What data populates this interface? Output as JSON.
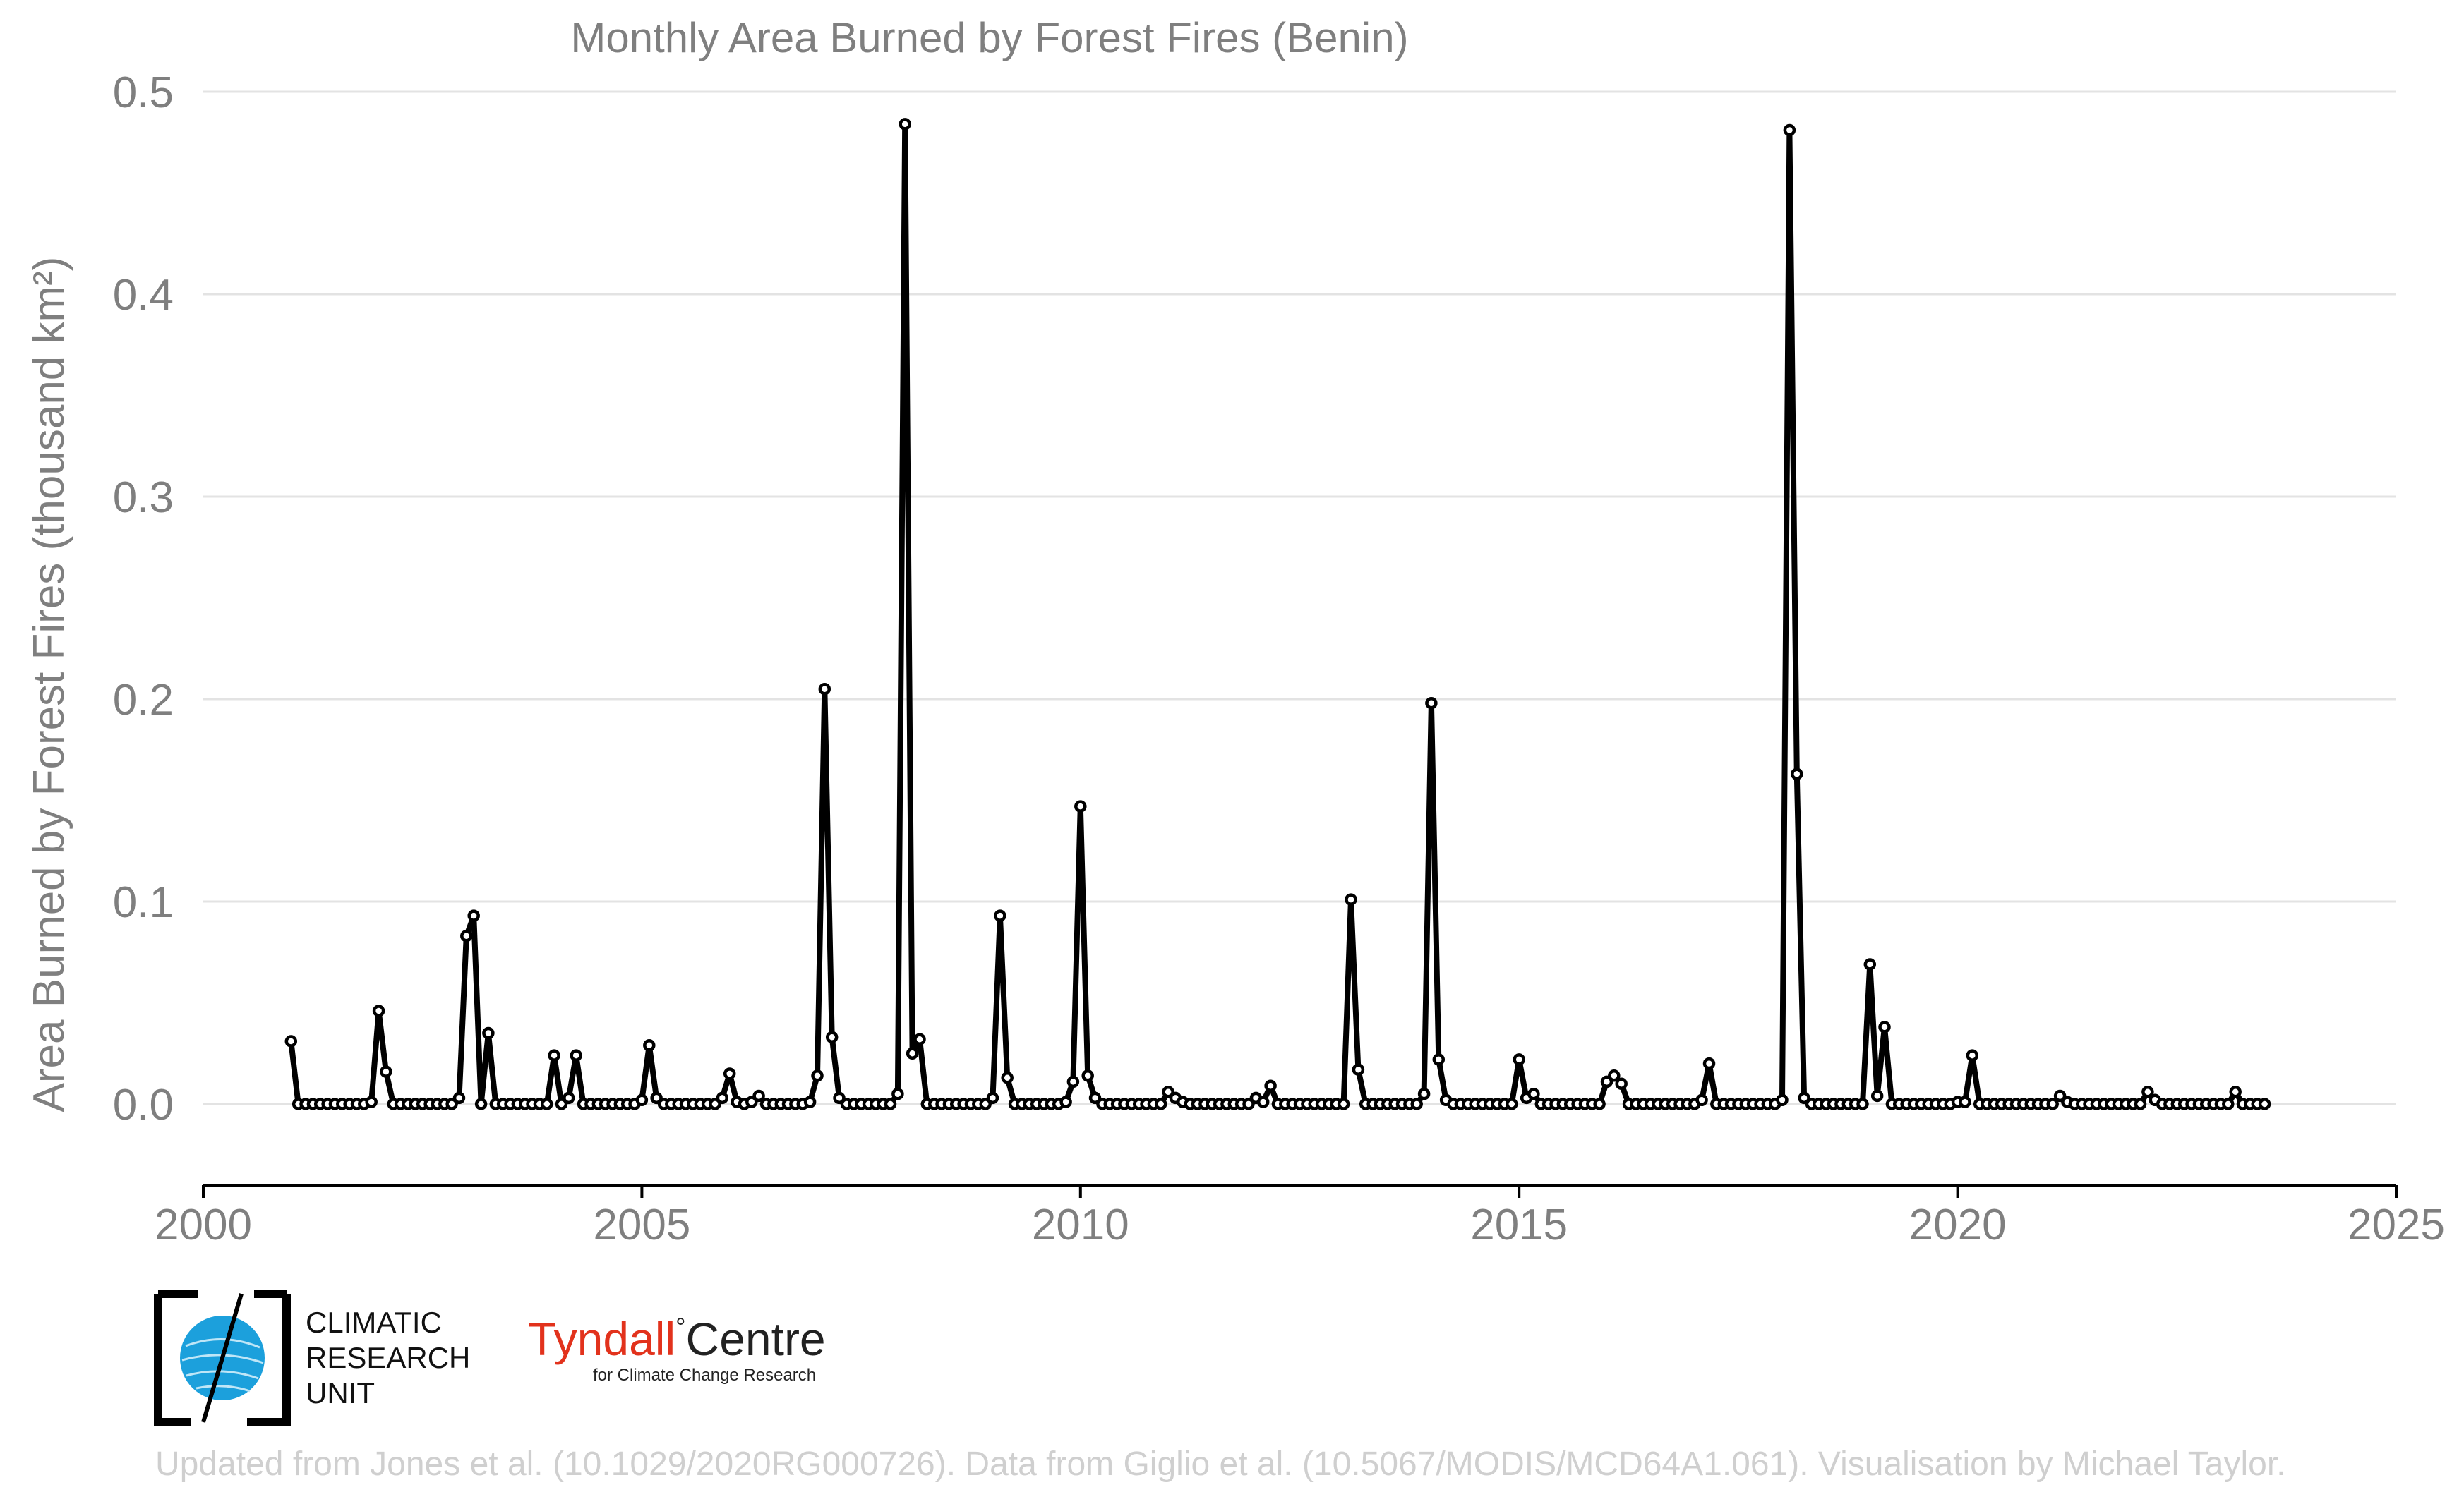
{
  "chart_data": {
    "type": "line",
    "title": "Monthly Area Burned by Forest Fires (Benin)",
    "ylabel": "Area Burned by Forest Fires (thousand km²)",
    "xlabel": "",
    "xlim": [
      2000,
      2025
    ],
    "ylim": [
      -0.04,
      0.5
    ],
    "xticks": [
      "2000",
      "2005",
      "2010",
      "2015",
      "2020",
      "2025"
    ],
    "yticks": [
      "0.0",
      "0.1",
      "0.2",
      "0.3",
      "0.4",
      "0.5"
    ],
    "grid": "horizontal",
    "series_color": "#000000",
    "x_start": "2001-01",
    "x_step": "monthly",
    "values": [
      0.031,
      0.0,
      0.0,
      0.0,
      0.0,
      0.0,
      0.0,
      0.0,
      0.0,
      0.0,
      0.0,
      0.001,
      0.046,
      0.016,
      0.0,
      0.0,
      0.0,
      0.0,
      0.0,
      0.0,
      0.0,
      0.0,
      0.0,
      0.003,
      0.083,
      0.093,
      0.0,
      0.035,
      0.0,
      0.0,
      0.0,
      0.0,
      0.0,
      0.0,
      0.0,
      0.0,
      0.024,
      0.0,
      0.003,
      0.024,
      0.0,
      0.0,
      0.0,
      0.0,
      0.0,
      0.0,
      0.0,
      0.0,
      0.002,
      0.029,
      0.003,
      0.0,
      0.0,
      0.0,
      0.0,
      0.0,
      0.0,
      0.0,
      0.0,
      0.003,
      0.015,
      0.001,
      0.0,
      0.001,
      0.004,
      0.0,
      0.0,
      0.0,
      0.0,
      0.0,
      0.0,
      0.001,
      0.014,
      0.205,
      0.033,
      0.003,
      0.0,
      0.0,
      0.0,
      0.0,
      0.0,
      0.0,
      0.0,
      0.005,
      0.484,
      0.025,
      0.032,
      0.0,
      0.0,
      0.0,
      0.0,
      0.0,
      0.0,
      0.0,
      0.0,
      0.0,
      0.003,
      0.093,
      0.013,
      0.0,
      0.0,
      0.0,
      0.0,
      0.0,
      0.0,
      0.0,
      0.001,
      0.011,
      0.147,
      0.014,
      0.003,
      0.0,
      0.0,
      0.0,
      0.0,
      0.0,
      0.0,
      0.0,
      0.0,
      0.0,
      0.006,
      0.003,
      0.001,
      0.0,
      0.0,
      0.0,
      0.0,
      0.0,
      0.0,
      0.0,
      0.0,
      0.0,
      0.003,
      0.001,
      0.009,
      0.0,
      0.0,
      0.0,
      0.0,
      0.0,
      0.0,
      0.0,
      0.0,
      0.0,
      0.0,
      0.101,
      0.017,
      0.0,
      0.0,
      0.0,
      0.0,
      0.0,
      0.0,
      0.0,
      0.0,
      0.005,
      0.198,
      0.022,
      0.002,
      0.0,
      0.0,
      0.0,
      0.0,
      0.0,
      0.0,
      0.0,
      0.0,
      0.0,
      0.022,
      0.003,
      0.005,
      0.0,
      0.0,
      0.0,
      0.0,
      0.0,
      0.0,
      0.0,
      0.0,
      0.0,
      0.011,
      0.014,
      0.01,
      0.0,
      0.0,
      0.0,
      0.0,
      0.0,
      0.0,
      0.0,
      0.0,
      0.0,
      0.0,
      0.002,
      0.02,
      0.0,
      0.0,
      0.0,
      0.0,
      0.0,
      0.0,
      0.0,
      0.0,
      0.0,
      0.002,
      0.481,
      0.163,
      0.003,
      0.0,
      0.0,
      0.0,
      0.0,
      0.0,
      0.0,
      0.0,
      0.0,
      0.069,
      0.004,
      0.038,
      0.0,
      0.0,
      0.0,
      0.0,
      0.0,
      0.0,
      0.0,
      0.0,
      0.0,
      0.001,
      0.001,
      0.024,
      0.0,
      0.0,
      0.0,
      0.0,
      0.0,
      0.0,
      0.0,
      0.0,
      0.0,
      0.0,
      0.0,
      0.004,
      0.001,
      0.0,
      0.0,
      0.0,
      0.0,
      0.0,
      0.0,
      0.0,
      0.0,
      0.0,
      0.0,
      0.006,
      0.002,
      0.0,
      0.0,
      0.0,
      0.0,
      0.0,
      0.0,
      0.0,
      0.0,
      0.0,
      0.0,
      0.006,
      0.0,
      0.0,
      0.0,
      0.0
    ]
  },
  "logos": {
    "cru_line1": "CLIMATIC",
    "cru_line2": "RESEARCH",
    "cru_line3": "UNIT",
    "tyndall_part1": "Tyndall",
    "tyndall_degree": "°",
    "tyndall_part2": "Centre",
    "tyndall_sub": "for Climate Change Research",
    "tyndall_color": "#e2321c",
    "cru_globe_color": "#1ca0dc"
  },
  "footer": {
    "credit": "Updated from Jones et al. (10.1029/2020RG000726). Data from Giglio et al. (10.5067/MODIS/MCD64A1.061). Visualisation by Michael Taylor."
  }
}
